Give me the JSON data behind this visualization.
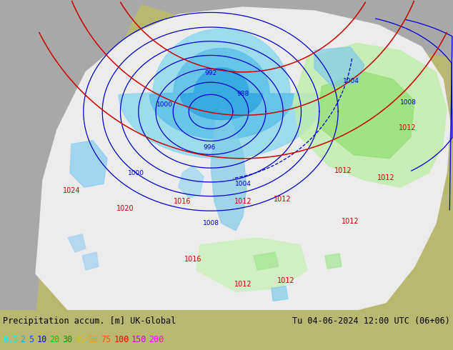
{
  "title_left": "Precipitation accum. [m] UK-Global",
  "title_right": "Tu 04-06-2024 12:00 UTC (06+06)",
  "legend_values": [
    "0.5",
    "2",
    "5",
    "10",
    "20",
    "30",
    "40",
    "50",
    "75",
    "100",
    "150",
    "200"
  ],
  "legend_colors": [
    "#00eeff",
    "#00aaff",
    "#0055ff",
    "#0000ff",
    "#00cc00",
    "#009900",
    "#cccc00",
    "#ff9900",
    "#ff5500",
    "#ff0000",
    "#cc00cc",
    "#ff00ff"
  ],
  "bg_land_color": "#b8b870",
  "bg_gray_ocean": "#a0a0a0",
  "domain_white": "#e8e8e8",
  "domain_light": "#f0f0f0",
  "prec_cyan_light": "#b0e8f8",
  "prec_cyan_mid": "#70ccf0",
  "prec_cyan_strong": "#40b0e8",
  "prec_green_light": "#c8f0c0",
  "prec_green_mid": "#a0e890",
  "isobar_blue": "#0000cc",
  "isobar_red": "#cc0000",
  "bottom_bg": "#ffffff",
  "figure_width": 6.34,
  "figure_height": 4.9,
  "dpi": 100
}
